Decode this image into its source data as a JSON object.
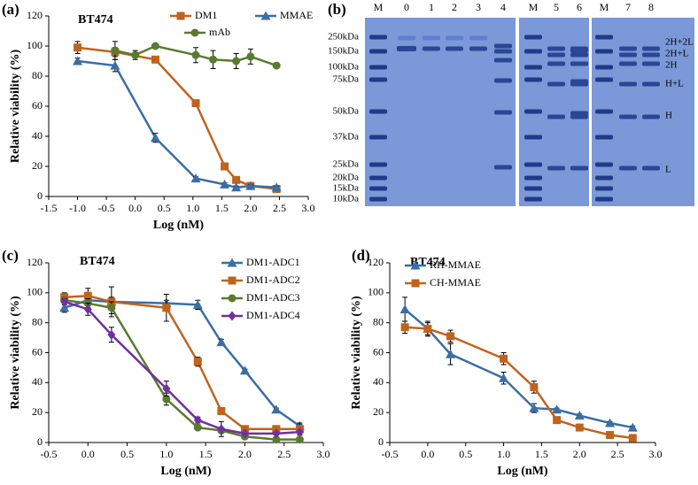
{
  "chart_data": [
    {
      "type": "line",
      "panel_label": "(a)",
      "title": "BT474",
      "ylabel": "Relative viability (%)",
      "xlabel": "Log (nM)",
      "xlim": [
        -1.5,
        3.0
      ],
      "xticks": [
        {
          "value": -1.5,
          "label": "-1.5"
        },
        {
          "value": -1.0,
          "label": "-1.0"
        },
        {
          "value": -0.5,
          "label": "-0.5"
        },
        {
          "value": 0,
          "label": "0.0"
        },
        {
          "value": 0.5,
          "label": "0.5"
        },
        {
          "value": 1.0,
          "label": "1.0"
        },
        {
          "value": 1.5,
          "label": "1.5"
        },
        {
          "value": 2.0,
          "label": "2.0"
        },
        {
          "value": 2.5,
          "label": "2.5"
        },
        {
          "value": 3.0,
          "label": "3.0"
        }
      ],
      "ylim": [
        0,
        120
      ],
      "yticks": [
        0,
        20,
        40,
        60,
        80,
        100,
        120
      ],
      "series": [
        {
          "name": "DM1",
          "color": "#c0631d",
          "marker": "square",
          "x": [
            -1.0,
            -0.35,
            0.35,
            1.05,
            1.55,
            1.75,
            2.0,
            2.45
          ],
          "values": [
            99,
            96,
            91,
            62,
            20,
            11,
            7,
            5
          ],
          "errors": [
            4,
            3,
            1,
            1,
            1,
            1,
            1,
            1
          ]
        },
        {
          "name": "MMAE",
          "color": "#3a6ea5",
          "marker": "triangle",
          "x": [
            -1.0,
            -0.35,
            0.35,
            1.05,
            1.55,
            1.75,
            2.0,
            2.45
          ],
          "values": [
            90,
            87,
            39,
            12,
            8,
            6,
            7,
            6
          ],
          "errors": [
            2,
            4,
            3,
            1,
            1,
            1,
            1,
            1
          ]
        },
        {
          "name": "mAb",
          "color": "#5a7a30",
          "marker": "circle",
          "x": [
            -0.35,
            0.0,
            0.35,
            1.05,
            1.35,
            1.75,
            2.0,
            2.45
          ],
          "values": [
            97,
            94,
            100,
            94,
            91,
            90,
            93,
            87
          ],
          "errors": [
            6,
            3,
            1,
            5,
            6,
            5,
            5,
            1
          ]
        }
      ]
    },
    {
      "type": "gel",
      "panel_label": "(b)",
      "lanes": [
        "M",
        "0",
        "1",
        "2",
        "3",
        "4",
        "M",
        "5",
        "6",
        "M",
        "7",
        "8"
      ],
      "markers": [
        "250kDa",
        "150kDa",
        "100kDa",
        "75kDa",
        "50kDa",
        "37kDa",
        "25kDa",
        "20kDa",
        "15kDa",
        "10kDa"
      ],
      "band_labels": [
        "2H+2L",
        "2H+L",
        "2H",
        "H+L",
        "H",
        "L"
      ]
    },
    {
      "type": "line",
      "panel_label": "(c)",
      "title": "BT474",
      "ylabel": "Relative viability (%)",
      "xlabel": "Log (nM)",
      "xlim": [
        -0.5,
        3.0
      ],
      "xticks": [
        {
          "value": -0.5,
          "label": "-0.5"
        },
        {
          "value": 0,
          "label": "0.0"
        },
        {
          "value": 0.5,
          "label": "0.5"
        },
        {
          "value": 1.0,
          "label": "1.0"
        },
        {
          "value": 1.5,
          "label": "1.5"
        },
        {
          "value": 2.0,
          "label": "2.0"
        },
        {
          "value": 2.5,
          "label": "2.5"
        },
        {
          "value": 3.0,
          "label": "3.0"
        }
      ],
      "ylim": [
        0,
        120
      ],
      "yticks": [
        0,
        20,
        40,
        60,
        80,
        100,
        120
      ],
      "series": [
        {
          "name": "DM1-ADC1",
          "color": "#3a6ea5",
          "marker": "triangle",
          "x": [
            -0.3,
            0.0,
            0.3,
            1.0,
            1.4,
            1.7,
            2.0,
            2.4,
            2.7
          ],
          "values": [
            90,
            95,
            94,
            93,
            92,
            67,
            48,
            22,
            11
          ],
          "errors": [
            3,
            3,
            3,
            2,
            3,
            2,
            1,
            1,
            1
          ]
        },
        {
          "name": "DM1-ADC2",
          "color": "#c0631d",
          "marker": "square",
          "x": [
            -0.3,
            0.0,
            0.3,
            1.0,
            1.4,
            1.7,
            2.0,
            2.4,
            2.7
          ],
          "values": [
            97,
            98,
            94,
            90,
            54,
            21,
            9,
            9,
            9
          ],
          "errors": [
            3,
            5,
            10,
            9,
            3,
            1,
            1,
            1,
            4
          ]
        },
        {
          "name": "DM1-ADC3",
          "color": "#5a7a30",
          "marker": "circle",
          "x": [
            -0.3,
            0.0,
            0.3,
            1.0,
            1.4,
            1.7,
            2.0,
            2.4,
            2.7
          ],
          "values": [
            95,
            93,
            90,
            29,
            10,
            8,
            4,
            2,
            2
          ],
          "errors": [
            2,
            3,
            4,
            4,
            1,
            1,
            1,
            1,
            1
          ]
        },
        {
          "name": "DM1-ADC4",
          "color": "#7030a0",
          "marker": "diamond",
          "x": [
            -0.3,
            0.0,
            0.3,
            1.0,
            1.4,
            1.7,
            2.0,
            2.4,
            2.7
          ],
          "values": [
            94,
            89,
            72,
            36,
            15,
            9,
            6,
            6,
            7
          ],
          "errors": [
            2,
            4,
            5,
            5,
            2,
            5,
            1,
            1,
            1
          ]
        }
      ]
    },
    {
      "type": "line",
      "panel_label": "(d)",
      "title": "BT474",
      "ylabel": "Relative viability (%)",
      "xlabel": "Log (nM)",
      "xlim": [
        -0.5,
        3.0
      ],
      "xticks": [
        {
          "value": -0.5,
          "label": "-0.5"
        },
        {
          "value": 0,
          "label": "0.0"
        },
        {
          "value": 0.5,
          "label": "0.5"
        },
        {
          "value": 1.0,
          "label": "1.0"
        },
        {
          "value": 1.5,
          "label": "1.5"
        },
        {
          "value": 2.0,
          "label": "2.0"
        },
        {
          "value": 2.5,
          "label": "2.5"
        },
        {
          "value": 3.0,
          "label": "3.0"
        }
      ],
      "ylim": [
        0,
        120
      ],
      "yticks": [
        0,
        20,
        40,
        60,
        80,
        100,
        120
      ],
      "series": [
        {
          "name": "RH-MMAE",
          "color": "#3a6ea5",
          "marker": "triangle",
          "x": [
            -0.3,
            0.0,
            0.3,
            1.0,
            1.4,
            1.7,
            2.0,
            2.4,
            2.7
          ],
          "values": [
            89,
            76,
            59,
            43,
            23,
            22,
            18,
            13,
            10
          ],
          "errors": [
            8,
            4,
            7,
            4,
            3,
            1,
            1,
            1,
            1
          ]
        },
        {
          "name": "CH-MMAE",
          "color": "#c0631d",
          "marker": "square",
          "x": [
            -0.3,
            0.0,
            0.3,
            1.0,
            1.4,
            1.7,
            2.0,
            2.4,
            2.7
          ],
          "values": [
            77,
            76,
            71,
            56,
            37,
            15,
            10,
            5,
            3
          ],
          "errors": [
            4,
            5,
            4,
            4,
            4,
            1,
            1,
            1,
            1
          ]
        }
      ]
    }
  ]
}
